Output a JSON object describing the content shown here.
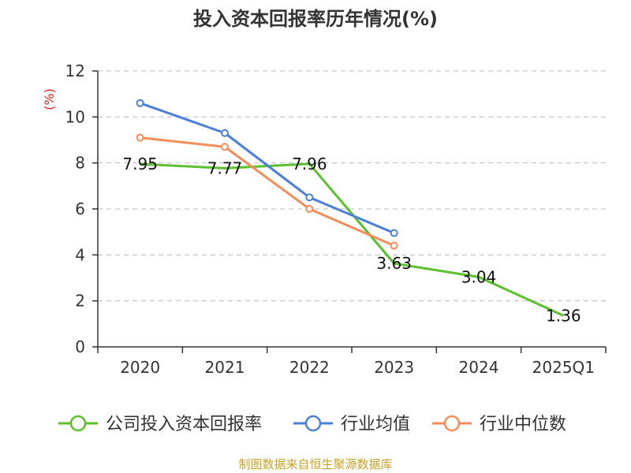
{
  "chart_data": {
    "type": "line",
    "title": "投入资本回报率历年情况(%)",
    "ylabel": "(%)",
    "xlabel": "",
    "categories": [
      "2020",
      "2021",
      "2022",
      "2023",
      "2024",
      "2025Q1"
    ],
    "ylim": [
      0,
      12
    ],
    "yticks": [
      0,
      2,
      4,
      6,
      8,
      10,
      12
    ],
    "grid": true,
    "legend_position": "bottom",
    "series": [
      {
        "name": "公司投入资本回报率",
        "color": "#5ac12d",
        "values": [
          7.95,
          7.77,
          7.96,
          3.63,
          3.04,
          1.36
        ],
        "labels": [
          "7.95",
          "7.77",
          "7.96",
          "3.63",
          "3.04",
          "1.36"
        ],
        "markers": false
      },
      {
        "name": "行业均值",
        "color": "#4a80d9",
        "values": [
          10.6,
          9.3,
          6.5,
          4.95,
          null,
          null
        ],
        "markers": true
      },
      {
        "name": "行业中位数",
        "color": "#f58d59",
        "values": [
          9.1,
          8.7,
          6.0,
          4.4,
          null,
          null
        ],
        "markers": true
      }
    ]
  },
  "footer": {
    "source": "制图数据来自恒生聚源数据库",
    "source_color": "#c9a227"
  },
  "colors": {
    "axis": "#333333",
    "grid": "#bbbbbb",
    "unit": "#e02020"
  }
}
